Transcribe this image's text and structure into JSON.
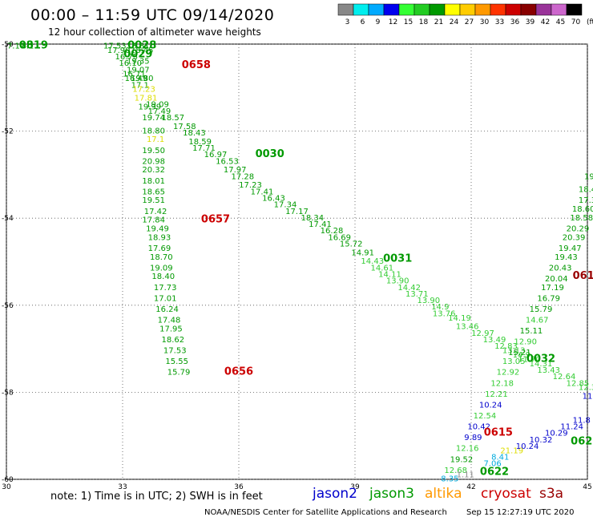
{
  "header": {
    "title": "00:00 – 11:59 UTC 09/14/2020",
    "subtitle": "12 hour collection of altimeter wave heights"
  },
  "footer": {
    "note": "note:  1) Time is in UTC;  2) SWH is in feet",
    "credit": "NOAA/NESDIS Center for Satellite Applications and Research",
    "timestamp": "Sep 15 12:27:19 UTC 2020"
  },
  "missions": [
    {
      "name": "jason2",
      "color": "#0000cc"
    },
    {
      "name": "jason3",
      "color": "#009900"
    },
    {
      "name": "altika",
      "color": "#ff9900"
    },
    {
      "name": "cryosat",
      "color": "#cc0000"
    },
    {
      "name": "s3a",
      "color": "#990000"
    }
  ],
  "colorbar": {
    "unit": "(ft)",
    "bins": [
      {
        "color": "#888888",
        "label": "3"
      },
      {
        "color": "#00eeee",
        "label": "6"
      },
      {
        "color": "#00aaff",
        "label": "9"
      },
      {
        "color": "#0000ee",
        "label": "12"
      },
      {
        "color": "#33ff33",
        "label": "15"
      },
      {
        "color": "#22cc22",
        "label": "18"
      },
      {
        "color": "#009900",
        "label": "21"
      },
      {
        "color": "#ffff00",
        "label": "24"
      },
      {
        "color": "#ffcc00",
        "label": "27"
      },
      {
        "color": "#ff9900",
        "label": "30"
      },
      {
        "color": "#ff3300",
        "label": "33"
      },
      {
        "color": "#cc0000",
        "label": "36"
      },
      {
        "color": "#880000",
        "label": "39"
      },
      {
        "color": "#993399",
        "label": "42"
      },
      {
        "color": "#cc66cc",
        "label": "45"
      },
      {
        "color": "#000000",
        "label": "70"
      }
    ]
  },
  "chart_data": {
    "type": "scatter",
    "title": "12 hour collection of altimeter wave heights",
    "xlim": [
      30,
      45
    ],
    "ylim": [
      -60,
      -50
    ],
    "xticks": [
      30,
      33,
      36,
      39,
      42,
      45
    ],
    "yticks": [
      -50,
      -52,
      -54,
      -56,
      -58,
      -60
    ],
    "grid": true,
    "value_colors": {
      "g": "#009900",
      "lg": "#33cc33",
      "y": "#dddd00",
      "b": "#0000cc",
      "c": "#00aadd",
      "gr": "#888888",
      "o": "#ff9900"
    },
    "pass_labels": [
      {
        "text": "0819",
        "x": 30.7,
        "y": -50.1,
        "color": "#009900"
      },
      {
        "text": "0028",
        "x": 33.5,
        "y": -50.1,
        "color": "#009900"
      },
      {
        "text": "0029",
        "x": 33.4,
        "y": -50.3,
        "color": "#009900"
      },
      {
        "text": "0658",
        "x": 34.9,
        "y": -50.55,
        "color": "#cc0000"
      },
      {
        "text": "0030",
        "x": 36.8,
        "y": -52.6,
        "color": "#009900"
      },
      {
        "text": "0657",
        "x": 35.4,
        "y": -54.1,
        "color": "#cc0000"
      },
      {
        "text": "0031",
        "x": 40.1,
        "y": -55.0,
        "color": "#009900"
      },
      {
        "text": "0656",
        "x": 36.0,
        "y": -57.6,
        "color": "#cc0000"
      },
      {
        "text": "0032",
        "x": 43.8,
        "y": -57.3,
        "color": "#009900"
      },
      {
        "text": "0615",
        "x": 42.7,
        "y": -59.0,
        "color": "#cc0000"
      },
      {
        "text": "0622",
        "x": 42.6,
        "y": -59.9,
        "color": "#009900"
      },
      {
        "text": "061",
        "x": 44.9,
        "y": -55.4,
        "color": "#990000"
      },
      {
        "text": "062",
        "x": 44.85,
        "y": -59.2,
        "color": "#009900"
      }
    ],
    "tracks": [
      {
        "name": "pass-0819",
        "points": [
          [
            30.25,
            -50.1,
            "7.17",
            "g"
          ],
          [
            30.55,
            -50.1,
            "8.2",
            "g"
          ]
        ]
      },
      {
        "name": "pass-0028-0029",
        "points": [
          [
            32.8,
            -50.1,
            "17.53",
            "g"
          ],
          [
            33.4,
            -50.1,
            "18.81",
            "g"
          ],
          [
            32.9,
            -50.2,
            "17.90",
            "g"
          ],
          [
            33.5,
            -50.2,
            "18.45",
            "g"
          ],
          [
            33.1,
            -50.35,
            "16.75",
            "g"
          ],
          [
            33.4,
            -50.45,
            "19.35",
            "g"
          ],
          [
            33.2,
            -50.5,
            "16.10",
            "g"
          ],
          [
            33.4,
            -50.65,
            "19.07",
            "g"
          ],
          [
            33.3,
            -50.75,
            "16.71",
            "g"
          ],
          [
            33.35,
            -50.85,
            "16.49",
            "g"
          ],
          [
            33.5,
            -50.85,
            "19.80",
            "g"
          ],
          [
            33.45,
            -51.0,
            "17.1",
            "g"
          ],
          [
            33.55,
            -51.1,
            "17.23",
            "y"
          ],
          [
            33.6,
            -51.3,
            "17.81",
            "y"
          ],
          [
            33.9,
            -51.45,
            "19.09",
            "g"
          ],
          [
            33.7,
            -51.5,
            "19.99",
            "g"
          ],
          [
            33.95,
            -51.6,
            "17.49",
            "g"
          ],
          [
            34.3,
            -51.75,
            "18.57",
            "g"
          ],
          [
            33.8,
            -51.75,
            "19.74",
            "g"
          ],
          [
            34.6,
            -51.95,
            "17.58",
            "g"
          ],
          [
            33.8,
            -52.05,
            "18.80",
            "g"
          ],
          [
            34.85,
            -52.1,
            "18.43",
            "g"
          ],
          [
            33.85,
            -52.25,
            "17.1",
            "y"
          ],
          [
            35.0,
            -52.3,
            "18.59",
            "g"
          ],
          [
            35.1,
            -52.45,
            "17.71",
            "g"
          ],
          [
            33.8,
            -52.5,
            "19.50",
            "g"
          ],
          [
            35.4,
            -52.6,
            "16.97",
            "g"
          ],
          [
            33.8,
            -52.75,
            "20.98",
            "g"
          ],
          [
            35.7,
            -52.75,
            "16.53",
            "g"
          ],
          [
            35.9,
            -52.95,
            "17.97",
            "g"
          ],
          [
            33.8,
            -52.95,
            "20.32",
            "g"
          ],
          [
            36.1,
            -53.1,
            "17.28",
            "g"
          ],
          [
            33.8,
            -53.2,
            "18.01",
            "g"
          ],
          [
            36.3,
            -53.3,
            "17.23",
            "g"
          ],
          [
            33.8,
            -53.45,
            "18.65",
            "g"
          ],
          [
            36.6,
            -53.45,
            "17.41",
            "g"
          ],
          [
            36.9,
            -53.6,
            "16.43",
            "g"
          ],
          [
            33.8,
            -53.65,
            "19.51",
            "g"
          ],
          [
            37.2,
            -53.75,
            "17.34",
            "g"
          ],
          [
            33.85,
            -53.9,
            "17.42",
            "g"
          ],
          [
            37.5,
            -53.9,
            "17.17",
            "g"
          ],
          [
            37.9,
            -54.05,
            "18.34",
            "g"
          ],
          [
            33.8,
            -54.1,
            "17.84",
            "g"
          ],
          [
            38.1,
            -54.2,
            "17.41",
            "g"
          ],
          [
            33.9,
            -54.3,
            "19.49",
            "g"
          ],
          [
            38.4,
            -54.35,
            "16.28",
            "g"
          ],
          [
            38.6,
            -54.5,
            "16.69",
            "g"
          ],
          [
            33.95,
            -54.5,
            "18.93",
            "g"
          ],
          [
            38.9,
            -54.65,
            "15.72",
            "g"
          ],
          [
            33.95,
            -54.75,
            "17.69",
            "g"
          ],
          [
            39.2,
            -54.85,
            "14.91",
            "g"
          ],
          [
            34.0,
            -54.95,
            "18.70",
            "g"
          ],
          [
            39.45,
            -55.05,
            "14.43",
            "lg"
          ],
          [
            34.0,
            -55.2,
            "19.09",
            "g"
          ],
          [
            39.7,
            -55.2,
            "14.61",
            "lg"
          ],
          [
            39.9,
            -55.35,
            "14.11",
            "lg"
          ],
          [
            34.05,
            -55.4,
            "18.40",
            "g"
          ],
          [
            40.1,
            -55.5,
            "13.90",
            "lg"
          ],
          [
            40.4,
            -55.65,
            "14.42",
            "lg"
          ],
          [
            34.1,
            -55.65,
            "17.73",
            "g"
          ],
          [
            40.6,
            -55.8,
            "13.71",
            "lg"
          ],
          [
            34.1,
            -55.9,
            "17.01",
            "g"
          ],
          [
            40.9,
            -55.95,
            "13.90",
            "lg"
          ],
          [
            34.15,
            -56.15,
            "16.24",
            "g"
          ],
          [
            41.2,
            -56.1,
            "14.9",
            "lg"
          ],
          [
            41.3,
            -56.25,
            "13.76",
            "lg"
          ],
          [
            34.2,
            -56.4,
            "17.48",
            "g"
          ],
          [
            41.7,
            -56.35,
            "14.19",
            "lg"
          ],
          [
            34.25,
            -56.6,
            "17.95",
            "g"
          ],
          [
            41.9,
            -56.55,
            "13.46",
            "lg"
          ],
          [
            42.3,
            -56.7,
            "12.97",
            "lg"
          ],
          [
            34.3,
            -56.85,
            "18.62",
            "g"
          ],
          [
            42.6,
            -56.85,
            "13.49",
            "lg"
          ],
          [
            34.35,
            -57.1,
            "17.53",
            "g"
          ],
          [
            42.9,
            -57.0,
            "12.83",
            "lg"
          ],
          [
            43.1,
            -57.1,
            "13.13",
            "lg"
          ],
          [
            34.4,
            -57.35,
            "15.55",
            "g"
          ],
          [
            43.3,
            -57.2,
            "14.9",
            "lg"
          ],
          [
            43.5,
            -57.3,
            "11.70",
            "lg"
          ],
          [
            43.8,
            -57.4,
            "14.31",
            "lg"
          ],
          [
            34.45,
            -57.6,
            "15.79",
            "g"
          ],
          [
            44.0,
            -57.55,
            "13.43",
            "lg"
          ],
          [
            44.4,
            -57.7,
            "12.64",
            "lg"
          ],
          [
            44.75,
            -57.85,
            "12.85",
            "lg"
          ],
          [
            45.0,
            -57.95,
            "12.3",
            "lg"
          ]
        ]
      },
      {
        "name": "pass-0658-0657-0656",
        "points": [
          [
            34.8,
            -50.6,
            "",
            "g"
          ]
        ]
      },
      {
        "name": "pass-s3a-east",
        "points": [
          [
            45.05,
            -53.1,
            "19",
            "g"
          ],
          [
            45.0,
            -53.4,
            "18.4",
            "g"
          ],
          [
            45.0,
            -53.65,
            "17.3",
            "g"
          ],
          [
            44.9,
            -53.85,
            "18.60",
            "g"
          ],
          [
            44.85,
            -54.05,
            "18.58",
            "g"
          ],
          [
            44.75,
            -54.3,
            "20.29",
            "g"
          ],
          [
            44.65,
            -54.5,
            "20.39",
            "g"
          ],
          [
            44.55,
            -54.75,
            "19.47",
            "g"
          ],
          [
            44.45,
            -54.95,
            "19.43",
            "g"
          ],
          [
            44.3,
            -55.2,
            "20.43",
            "g"
          ],
          [
            44.2,
            -55.45,
            "20.04",
            "g"
          ],
          [
            44.1,
            -55.65,
            "17.19",
            "g"
          ],
          [
            44.0,
            -55.9,
            "16.79",
            "g"
          ],
          [
            43.8,
            -56.15,
            "15.79",
            "g"
          ],
          [
            43.7,
            -56.4,
            "14.67",
            "lg"
          ],
          [
            43.55,
            -56.65,
            "15.11",
            "g"
          ],
          [
            43.4,
            -56.9,
            "12.90",
            "lg"
          ],
          [
            43.25,
            -57.15,
            "15.21",
            "g"
          ],
          [
            43.1,
            -57.35,
            "13.05",
            "lg"
          ],
          [
            42.95,
            -57.6,
            "12.92",
            "lg"
          ],
          [
            42.8,
            -57.85,
            "12.18",
            "lg"
          ],
          [
            42.65,
            -58.1,
            "12.21",
            "lg"
          ],
          [
            42.5,
            -58.35,
            "10.24",
            "b"
          ],
          [
            42.35,
            -58.6,
            "12.54",
            "lg"
          ],
          [
            42.2,
            -58.85,
            "10.42",
            "b"
          ],
          [
            42.05,
            -59.1,
            "9.89",
            "b"
          ],
          [
            41.9,
            -59.35,
            "12.16",
            "lg"
          ],
          [
            41.75,
            -59.6,
            "19.52",
            "g"
          ],
          [
            41.6,
            -59.85,
            "12.68",
            "lg"
          ],
          [
            41.45,
            -60.05,
            "8.35",
            "c"
          ]
        ]
      },
      {
        "name": "pass-0622-east",
        "points": [
          [
            41.85,
            -59.95,
            "1.11",
            "gr"
          ],
          [
            42.55,
            -59.7,
            "7.06",
            "c"
          ],
          [
            42.75,
            -59.55,
            "8.41",
            "c"
          ],
          [
            43.05,
            -59.4,
            "21.19",
            "y"
          ],
          [
            43.45,
            -59.3,
            "10.24",
            "b"
          ],
          [
            43.8,
            -59.15,
            "10.32",
            "b"
          ],
          [
            44.2,
            -59.0,
            "10.29",
            "b"
          ],
          [
            44.6,
            -58.85,
            "11.24",
            "b"
          ],
          [
            44.85,
            -58.7,
            "11.8",
            "b"
          ],
          [
            45.0,
            -58.15,
            "11",
            "b"
          ]
        ]
      }
    ]
  }
}
